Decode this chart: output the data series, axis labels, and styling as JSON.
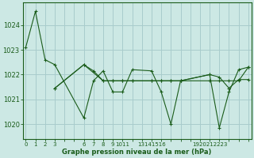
{
  "title": "Graphe pression niveau de la mer (hPa)",
  "bg_color": "#cce8e4",
  "grid_color": "#a8cccc",
  "line_color": "#1a5c1a",
  "xlim": [
    -0.3,
    23.3
  ],
  "ylim": [
    1019.4,
    1024.9
  ],
  "yticks": [
    1020,
    1021,
    1022,
    1023,
    1024
  ],
  "xtick_positions": [
    0,
    1,
    2,
    3,
    6,
    7,
    8,
    9,
    10,
    11,
    13,
    14,
    15,
    16,
    19,
    20,
    21,
    22,
    23
  ],
  "xtick_labels": [
    "0",
    "1",
    "2",
    "3",
    "6",
    "7",
    "8",
    "9",
    "1011",
    "",
    "13141516",
    "",
    "",
    "",
    "1920212223",
    "",
    "",
    "",
    ""
  ],
  "series": [
    {
      "x": [
        0,
        1,
        2,
        3,
        6,
        7,
        8,
        9,
        10,
        11,
        13,
        14,
        15,
        16,
        19,
        20,
        21,
        22,
        23
      ],
      "y": [
        1023.1,
        1024.55,
        1022.6,
        1022.4,
        1020.25,
        1021.75,
        1022.15,
        1021.3,
        1021.3,
        1022.2,
        1022.15,
        1021.3,
        1020.0,
        1021.75,
        1022.0,
        1019.85,
        1021.3,
        1022.2,
        1022.3
      ]
    },
    {
      "x": [
        3,
        6,
        7,
        8,
        9,
        10,
        11,
        13,
        14,
        15,
        16,
        19,
        20,
        21,
        22,
        23
      ],
      "y": [
        1021.45,
        1022.4,
        1022.15,
        1021.75,
        1021.75,
        1021.75,
        1021.75,
        1021.75,
        1021.75,
        1021.75,
        1021.75,
        1021.75,
        1021.75,
        1021.75,
        1021.75,
        1022.3
      ]
    },
    {
      "x": [
        3,
        6,
        8,
        9,
        10,
        11,
        13,
        14,
        15,
        16,
        19,
        20,
        21,
        22,
        23
      ],
      "y": [
        1021.45,
        1022.4,
        1021.75,
        1021.75,
        1021.75,
        1021.75,
        1021.75,
        1021.75,
        1021.75,
        1021.75,
        1022.0,
        1021.9,
        1021.45,
        1021.8,
        1021.8
      ]
    }
  ]
}
